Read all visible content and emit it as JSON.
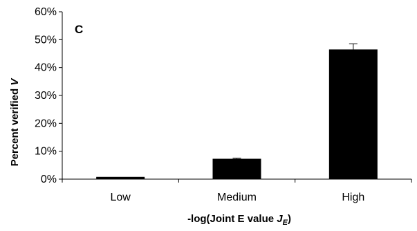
{
  "chart_data": {
    "type": "bar",
    "panel_label": "C",
    "categories": [
      "Low",
      "Medium",
      "High"
    ],
    "values": [
      0.8,
      7.3,
      46.5
    ],
    "error_upper": [
      0.0,
      0.2,
      2.0
    ],
    "ylim": [
      0,
      60
    ],
    "yticks": [
      0,
      10,
      20,
      30,
      40,
      50,
      60
    ],
    "ytick_labels": [
      "0%",
      "10%",
      "20%",
      "30%",
      "40%",
      "50%",
      "60%"
    ],
    "ylabel": {
      "prefix": "Percent verified ",
      "var": "V"
    },
    "xlabel": {
      "prefix": "-log(Joint E value ",
      "var": "J",
      "sub": "E",
      "suffix": ")"
    },
    "bar_color": "#000000",
    "grid": false
  }
}
